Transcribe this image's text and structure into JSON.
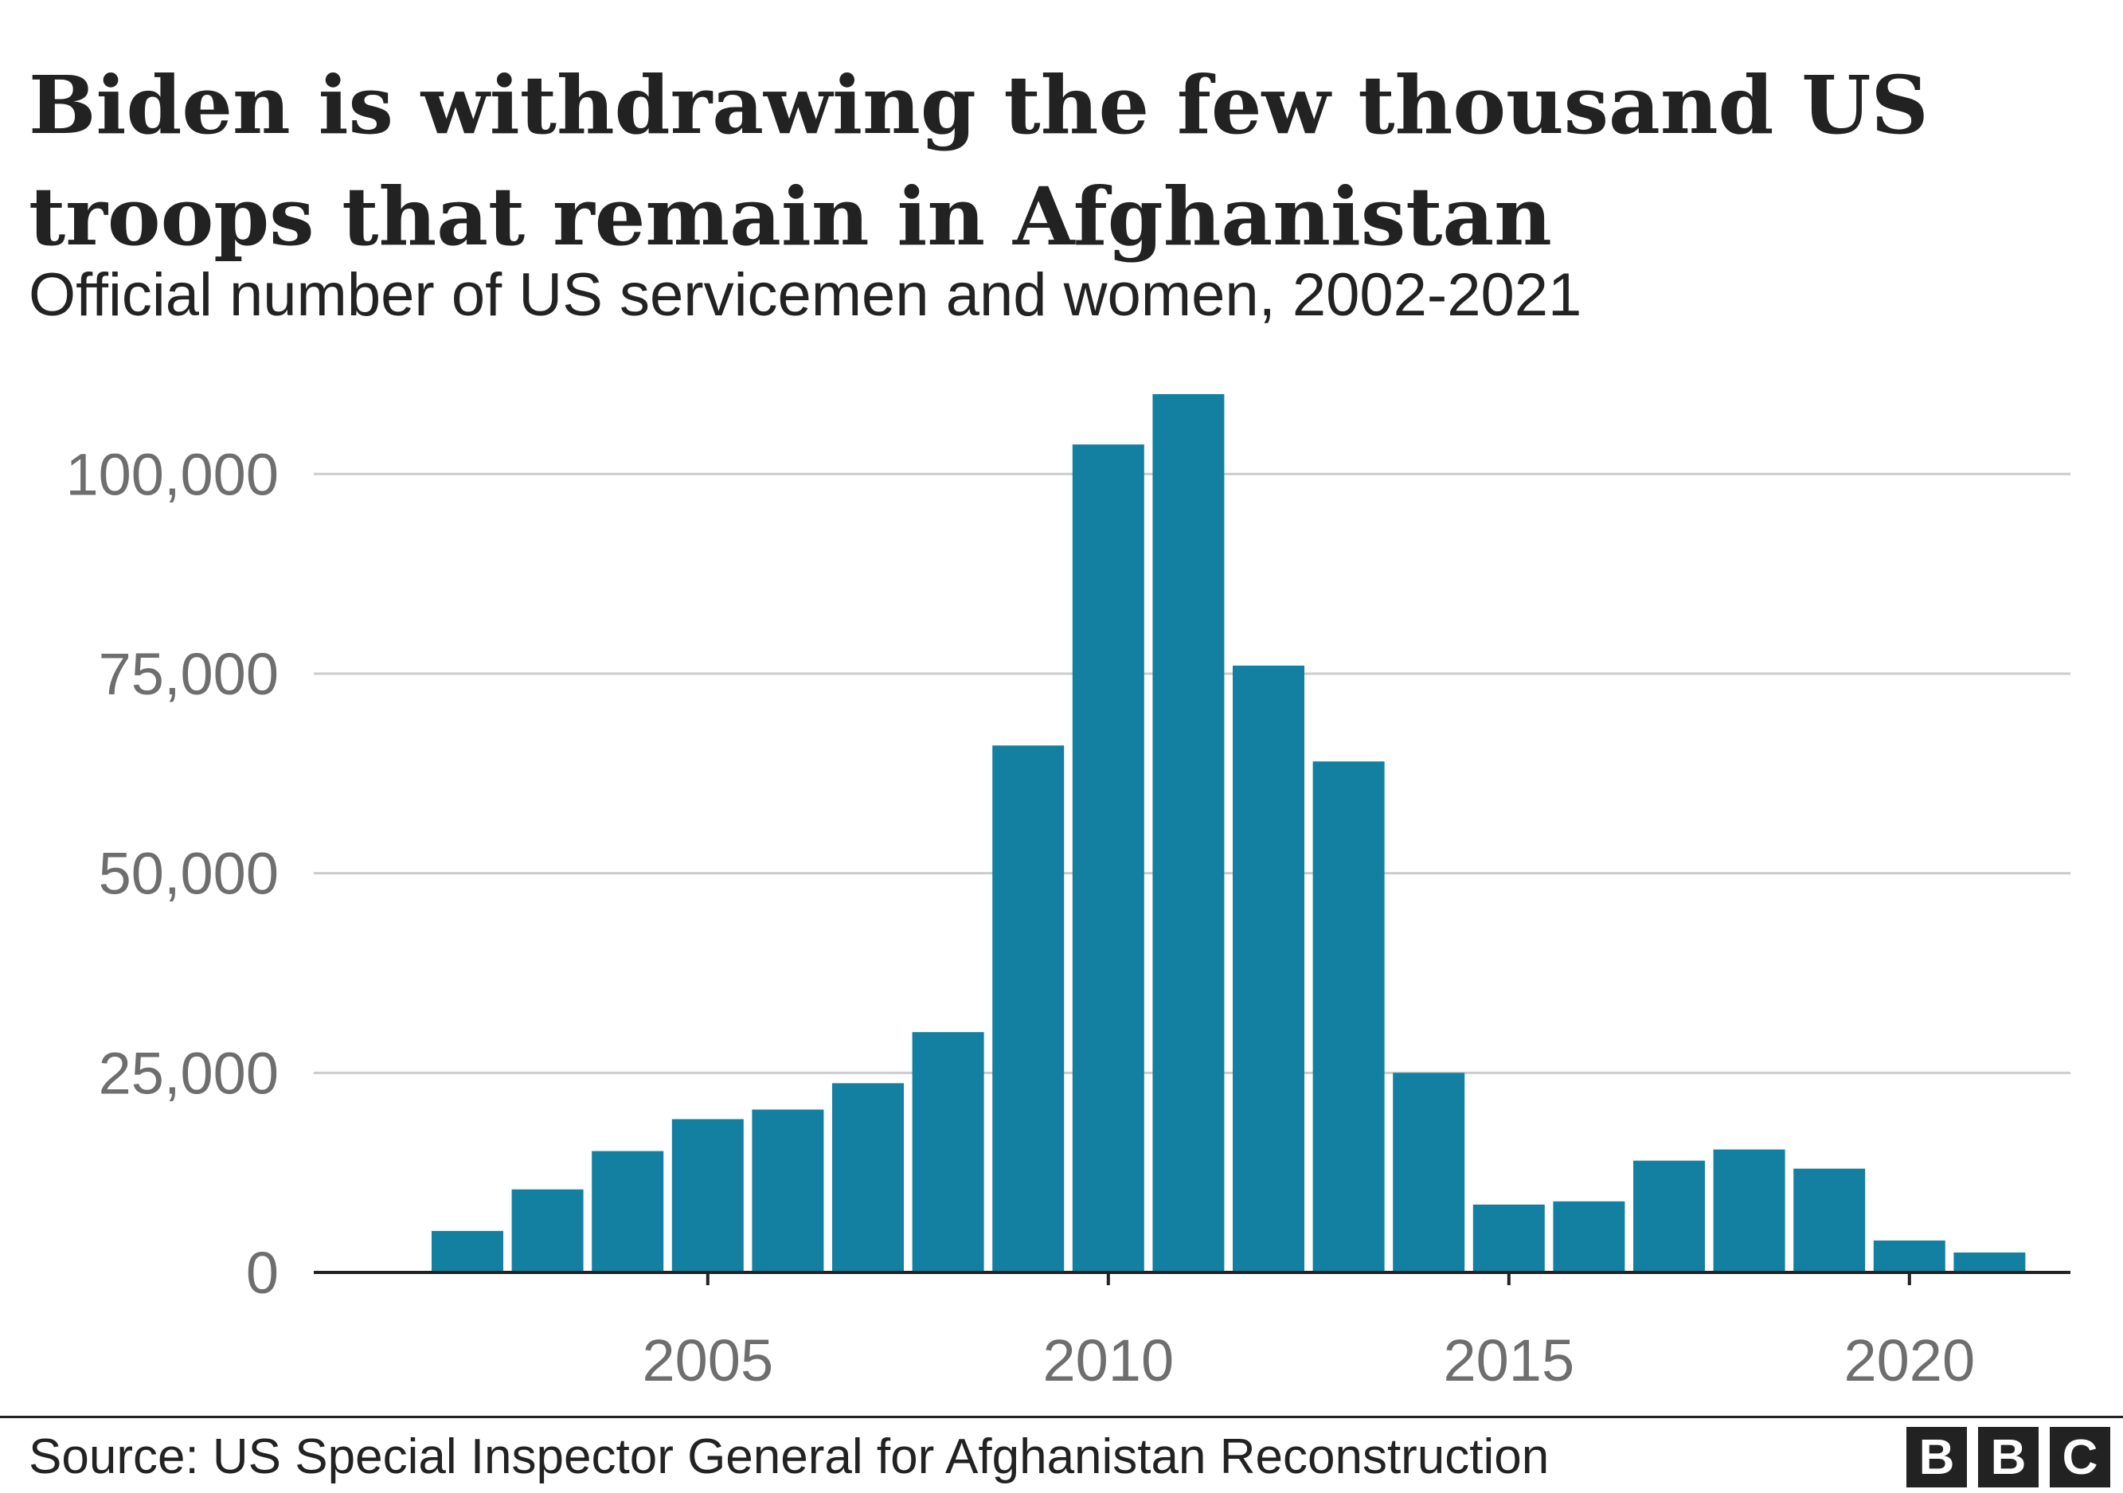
{
  "header": {
    "title": "Biden is withdrawing the few thousand US troops that remain in Afghanistan",
    "subtitle": "Official number of US servicemen and women, 2002-2021"
  },
  "footer": {
    "source": "Source: US Special Inspector General for Afghanistan Reconstruction",
    "logo_letters": [
      "B",
      "B",
      "C"
    ]
  },
  "colors": {
    "bar": "#1380a1",
    "grid": "#cccccc",
    "axis": "#222222"
  },
  "chart_data": {
    "type": "bar",
    "x": [
      2002,
      2003,
      2004,
      2005,
      2006,
      2007,
      2008,
      2009,
      2010,
      2011,
      2012,
      2013,
      2014,
      2015,
      2016,
      2017,
      2018,
      2019,
      2020,
      2021
    ],
    "values": [
      5200,
      10400,
      15200,
      19200,
      20400,
      23700,
      30100,
      66000,
      103700,
      110000,
      76000,
      64000,
      25000,
      8500,
      8900,
      14000,
      15400,
      13000,
      4000,
      2500
    ],
    "ylim": [
      0,
      110000
    ],
    "yticks": [
      0,
      25000,
      50000,
      75000,
      100000
    ],
    "ytick_labels": [
      "0",
      "25,000",
      "50,000",
      "75,000",
      "100,000"
    ],
    "xticks": [
      2005,
      2010,
      2015,
      2020
    ],
    "xtick_labels": [
      "2005",
      "2010",
      "2015",
      "2020"
    ],
    "xlabel": "",
    "ylabel": "",
    "grid": true
  }
}
